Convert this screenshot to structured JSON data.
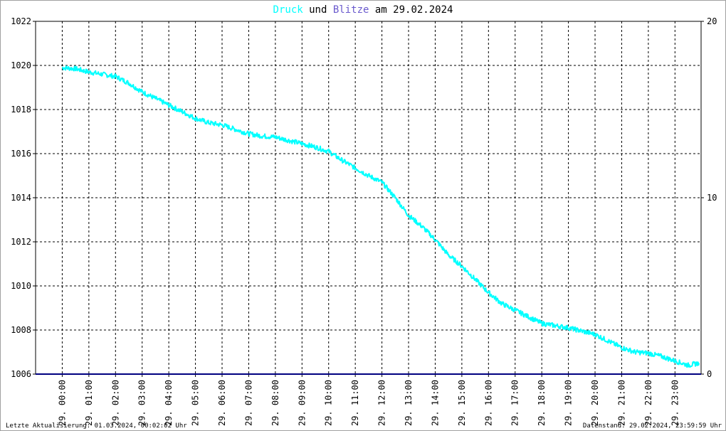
{
  "title": {
    "series1": "Druck",
    "mid": "und",
    "series2": "Blitze",
    "date_text": "am 29.02.2024"
  },
  "footer": {
    "left": "Letzte Aktualisierung: 01.03.2024, 00:02:02 Uhr",
    "right": "Datenstand: 29.02.2024, 23:59:59 Uhr"
  },
  "colors": {
    "druck": "#00ffff",
    "blitze": "#6a5acd",
    "blitze_line": "#000080",
    "grid": "#000000",
    "axis": "#000000"
  },
  "chart_data": {
    "type": "line",
    "title": "Druck und Blitze am 29.02.2024",
    "grid": true,
    "grid_style": "dashed",
    "x_tick_labels": [
      "29. 00:00",
      "29. 01:00",
      "29. 02:00",
      "29. 03:00",
      "29. 04:00",
      "29. 05:00",
      "29. 06:00",
      "29. 07:00",
      "29. 08:00",
      "29. 09:00",
      "29. 10:00",
      "29. 11:00",
      "29. 12:00",
      "29. 13:00",
      "29. 14:00",
      "29. 15:00",
      "29. 16:00",
      "29. 17:00",
      "29. 18:00",
      "29. 19:00",
      "29. 20:00",
      "29. 21:00",
      "29. 22:00",
      "29. 23:00"
    ],
    "x_range_hours": [
      -1,
      23.98
    ],
    "y_left": {
      "range": [
        1006,
        1022
      ],
      "ticks": [
        1006,
        1008,
        1010,
        1012,
        1014,
        1016,
        1018,
        1020,
        1022
      ]
    },
    "y_right": {
      "range": [
        0,
        20
      ],
      "ticks": [
        0,
        10,
        20
      ]
    },
    "series": [
      {
        "name": "Druck",
        "axis": "left",
        "x_hours": [
          0,
          0.5,
          1,
          1.5,
          2,
          2.5,
          3,
          3.5,
          4,
          4.5,
          5,
          5.5,
          6,
          6.5,
          7,
          7.5,
          8,
          8.5,
          9,
          9.5,
          10,
          10.5,
          11,
          11.5,
          12,
          12.5,
          13,
          13.5,
          14,
          14.5,
          15,
          15.5,
          16,
          16.5,
          17,
          17.5,
          18,
          18.5,
          19,
          19.5,
          20,
          20.5,
          21,
          21.5,
          22,
          22.5,
          23,
          23.5,
          23.9
        ],
        "values": [
          1019.9,
          1019.85,
          1019.7,
          1019.6,
          1019.5,
          1019.2,
          1018.8,
          1018.5,
          1018.2,
          1017.9,
          1017.6,
          1017.4,
          1017.3,
          1017.1,
          1016.9,
          1016.8,
          1016.75,
          1016.6,
          1016.45,
          1016.3,
          1016.1,
          1015.7,
          1015.35,
          1015.0,
          1014.7,
          1014.0,
          1013.2,
          1012.7,
          1012.1,
          1011.4,
          1010.9,
          1010.3,
          1009.7,
          1009.2,
          1008.9,
          1008.6,
          1008.3,
          1008.2,
          1008.1,
          1007.95,
          1007.8,
          1007.5,
          1007.2,
          1007.0,
          1006.95,
          1006.8,
          1006.6,
          1006.4,
          1006.5
        ]
      },
      {
        "name": "Blitze",
        "axis": "right",
        "x_hours": [
          -1,
          23.98
        ],
        "values": [
          0,
          0
        ]
      }
    ]
  }
}
